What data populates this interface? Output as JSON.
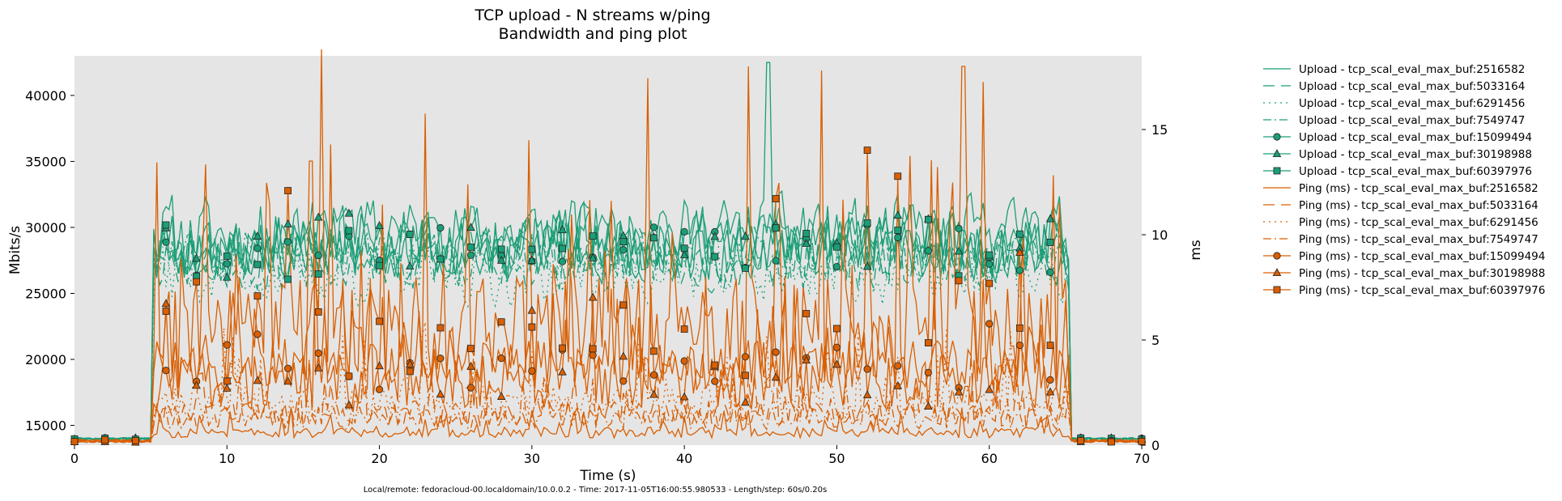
{
  "chart_data": {
    "type": "line",
    "title": "TCP upload - N streams w/ping",
    "subtitle": "Bandwidth and ping plot",
    "xlabel": "Time (s)",
    "ylabel": "Mbits/s",
    "y2label": "ms",
    "footer": "Local/remote: fedoracloud-00.localdomain/10.0.0.2 - Time: 2017-11-05T16:00:55.980533 - Length/step: 60s/0.20s",
    "xlim": [
      0,
      70
    ],
    "ylim": [
      13500,
      43000
    ],
    "y2lim": [
      0,
      18.5
    ],
    "xticks": [
      0,
      10,
      20,
      30,
      40,
      50,
      60,
      70
    ],
    "yticks": [
      15000,
      20000,
      25000,
      30000,
      35000,
      40000
    ],
    "y2ticks": [
      0,
      5,
      10,
      15
    ],
    "grid": false,
    "background": "#e5e5e5",
    "legend_position": "outside-right",
    "colors": {
      "upload": "#1b9e77",
      "ping": "#d95f02"
    },
    "series": [
      {
        "name": "Upload - tcp_scal_eval_max_buf:2516582",
        "group": "upload",
        "dash": "",
        "marker": "none",
        "base": 29500,
        "amp": 3800,
        "seed": 11,
        "peak": [
          45.5,
          42500
        ]
      },
      {
        "name": "Upload - tcp_scal_eval_max_buf:5033164",
        "group": "upload",
        "dash": "14 8",
        "marker": "none",
        "base": 27500,
        "amp": 3000,
        "seed": 23
      },
      {
        "name": "Upload - tcp_scal_eval_max_buf:6291456",
        "group": "upload",
        "dash": "2 5",
        "marker": "none",
        "base": 26500,
        "amp": 3200,
        "seed": 37
      },
      {
        "name": "Upload - tcp_scal_eval_max_buf:7549747",
        "group": "upload",
        "dash": "10 4 2 4",
        "marker": "none",
        "base": 27800,
        "amp": 2800,
        "seed": 41
      },
      {
        "name": "Upload - tcp_scal_eval_max_buf:15099494",
        "group": "upload",
        "dash": "",
        "marker": "circle",
        "base": 28500,
        "amp": 3300,
        "seed": 53
      },
      {
        "name": "Upload - tcp_scal_eval_max_buf:30198988",
        "group": "upload",
        "dash": "",
        "marker": "triangle",
        "base": 29000,
        "amp": 3500,
        "seed": 67
      },
      {
        "name": "Upload - tcp_scal_eval_max_buf:60397976",
        "group": "upload",
        "dash": "",
        "marker": "square",
        "base": 28500,
        "amp": 3400,
        "seed": 79
      },
      {
        "name": "Ping (ms) - tcp_scal_eval_max_buf:2516582",
        "group": "ping",
        "dash": "",
        "marker": "none",
        "base": 0.6,
        "amp": 0.5,
        "seed": 83
      },
      {
        "name": "Ping (ms) - tcp_scal_eval_max_buf:5033164",
        "group": "ping",
        "dash": "14 8",
        "marker": "none",
        "base": 1.5,
        "amp": 1.2,
        "seed": 97
      },
      {
        "name": "Ping (ms) - tcp_scal_eval_max_buf:6291456",
        "group": "ping",
        "dash": "2 5",
        "marker": "none",
        "base": 2.0,
        "amp": 1.6,
        "seed": 101
      },
      {
        "name": "Ping (ms) - tcp_scal_eval_max_buf:7549747",
        "group": "ping",
        "dash": "10 4 2 4",
        "marker": "none",
        "base": 1.3,
        "amp": 1.1,
        "seed": 113
      },
      {
        "name": "Ping (ms) - tcp_scal_eval_max_buf:15099494",
        "group": "ping",
        "dash": "",
        "marker": "circle",
        "base": 3.8,
        "amp": 2.4,
        "seed": 127,
        "peak": [
          15.5,
          13.5
        ]
      },
      {
        "name": "Ping (ms) - tcp_scal_eval_max_buf:30198988",
        "group": "ping",
        "dash": "",
        "marker": "triangle",
        "base": 3.0,
        "amp": 2.6,
        "seed": 131
      },
      {
        "name": "Ping (ms) - tcp_scal_eval_max_buf:60397976",
        "group": "ping",
        "dash": "",
        "marker": "square",
        "base": 5.5,
        "amp": 5.0,
        "seed": 139,
        "peak": [
          58.3,
          18.0
        ]
      }
    ],
    "active_range": [
      5.2,
      65.4
    ],
    "idle": {
      "upload": 14000,
      "ping": 0.2
    }
  }
}
